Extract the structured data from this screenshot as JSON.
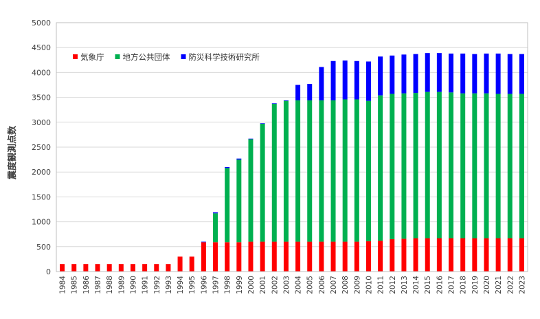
{
  "chart_data": {
    "type": "bar",
    "stacked": true,
    "title": "",
    "xlabel": "",
    "ylabel": "震度観測点数",
    "ylim": [
      0,
      5000
    ],
    "yticks": [
      0,
      500,
      1000,
      1500,
      2000,
      2500,
      3000,
      3500,
      4000,
      4500,
      5000
    ],
    "grid": true,
    "legend_position": "top-left",
    "categories": [
      "1984",
      "1985",
      "1986",
      "1987",
      "1988",
      "1989",
      "1990",
      "1991",
      "1992",
      "1993",
      "1994",
      "1995",
      "1996",
      "1997",
      "1998",
      "1999",
      "2000",
      "2001",
      "2002",
      "2003",
      "2004",
      "2005",
      "2006",
      "2007",
      "2008",
      "2009",
      "2010",
      "2011",
      "2012",
      "2013",
      "2014",
      "2015",
      "2016",
      "2017",
      "2018",
      "2019",
      "2020",
      "2021",
      "2022",
      "2023"
    ],
    "series": [
      {
        "name": "気象庁",
        "color": "#ff0000",
        "values": [
          150,
          150,
          150,
          150,
          150,
          150,
          150,
          150,
          150,
          150,
          300,
          300,
          590,
          590,
          590,
          590,
          600,
          600,
          600,
          600,
          600,
          600,
          600,
          600,
          600,
          600,
          610,
          620,
          650,
          660,
          670,
          670,
          670,
          670,
          670,
          670,
          670,
          670,
          670,
          670
        ]
      },
      {
        "name": "地方公共団体",
        "color": "#00b050",
        "values": [
          0,
          0,
          0,
          0,
          0,
          0,
          0,
          0,
          0,
          0,
          0,
          0,
          0,
          580,
          1490,
          1660,
          2060,
          2370,
          2770,
          2830,
          2840,
          2840,
          2840,
          2840,
          2860,
          2860,
          2820,
          2920,
          2920,
          2920,
          2920,
          2940,
          2940,
          2930,
          2910,
          2910,
          2910,
          2900,
          2900,
          2900
        ]
      },
      {
        "name": "防災科学技術研究所",
        "color": "#0000ff",
        "values": [
          0,
          0,
          0,
          0,
          0,
          0,
          0,
          0,
          0,
          0,
          0,
          0,
          10,
          20,
          20,
          20,
          10,
          10,
          10,
          10,
          310,
          330,
          670,
          790,
          780,
          770,
          790,
          780,
          770,
          780,
          780,
          780,
          780,
          780,
          800,
          790,
          800,
          810,
          800,
          800
        ]
      }
    ]
  }
}
